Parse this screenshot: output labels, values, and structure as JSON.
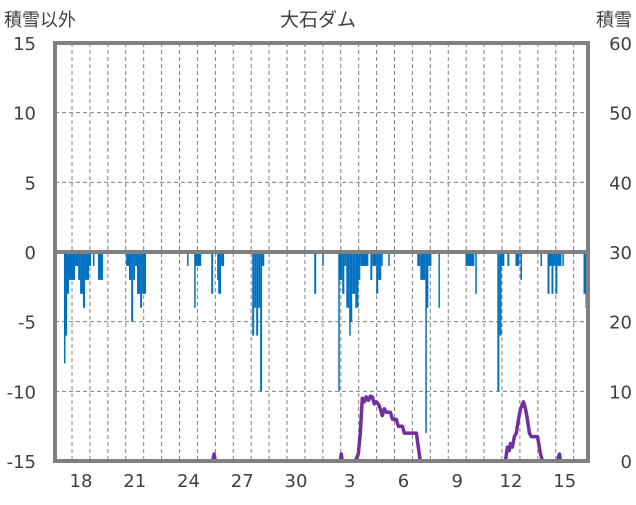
{
  "chart_data": {
    "type": "bar+line",
    "title": "大石ダム",
    "left_axis": {
      "label": "積雪以外",
      "range": [
        -15,
        15
      ],
      "ticks": [
        15,
        10,
        5,
        0,
        -5,
        -10,
        -15
      ]
    },
    "right_axis": {
      "label": "積雪",
      "range": [
        0,
        60
      ],
      "ticks": [
        60,
        50,
        40,
        30,
        20,
        10,
        0
      ]
    },
    "x_axis": {
      "unit": "days since Nov 18 00:00",
      "range": [
        -0.95,
        28.8
      ],
      "tick_labels": [
        {
          "day": 0.5,
          "label": "18"
        },
        {
          "day": 3.5,
          "label": "21"
        },
        {
          "day": 6.5,
          "label": "24"
        },
        {
          "day": 9.5,
          "label": "27"
        },
        {
          "day": 12.5,
          "label": "30"
        },
        {
          "day": 15.5,
          "label": "3"
        },
        {
          "day": 18.5,
          "label": "6"
        },
        {
          "day": 21.5,
          "label": "9"
        },
        {
          "day": 24.5,
          "label": "12"
        },
        {
          "day": 27.5,
          "label": "15"
        }
      ]
    },
    "grid": true,
    "colors": {
      "bars": "#0070C0",
      "line": "#7030A0",
      "frame": "#808080",
      "grid": "#808080"
    },
    "series": [
      {
        "name": "積雪以外",
        "axis": "left",
        "type": "bar",
        "segments": [
          [
            -0.45,
            -0.39,
            -8
          ],
          [
            -0.39,
            -0.28,
            -6
          ],
          [
            -0.28,
            -0.17,
            -3
          ],
          [
            -0.17,
            0.17,
            -2
          ],
          [
            0.17,
            0.34,
            -1
          ],
          [
            0.34,
            0.45,
            -2
          ],
          [
            0.45,
            0.61,
            -3
          ],
          [
            0.61,
            0.73,
            -4
          ],
          [
            0.73,
            0.95,
            -2
          ],
          [
            0.95,
            1.06,
            -1
          ],
          [
            1.17,
            1.23,
            -1
          ],
          [
            1.45,
            1.73,
            -2
          ],
          [
            3.02,
            3.18,
            -1
          ],
          [
            3.18,
            3.3,
            -2
          ],
          [
            3.3,
            3.41,
            -5
          ],
          [
            3.41,
            3.52,
            -2
          ],
          [
            3.52,
            3.63,
            -1
          ],
          [
            3.63,
            3.8,
            -3
          ],
          [
            3.8,
            3.91,
            -4
          ],
          [
            3.91,
            4.13,
            -3
          ],
          [
            6.42,
            6.48,
            -1
          ],
          [
            6.82,
            6.87,
            -4
          ],
          [
            6.87,
            7.21,
            -1
          ],
          [
            7.77,
            7.88,
            -3
          ],
          [
            8.1,
            8.16,
            -2
          ],
          [
            8.16,
            8.32,
            -3
          ],
          [
            8.32,
            8.49,
            -1
          ],
          [
            10.06,
            10.17,
            -6
          ],
          [
            10.17,
            10.28,
            -4
          ],
          [
            10.28,
            10.39,
            -6
          ],
          [
            10.39,
            10.5,
            -4
          ],
          [
            10.5,
            10.61,
            -10
          ],
          [
            10.61,
            10.73,
            -1
          ],
          [
            13.52,
            13.63,
            -3
          ],
          [
            13.97,
            14.02,
            -1
          ],
          [
            14.86,
            14.92,
            -10
          ],
          [
            14.92,
            15.08,
            -2
          ],
          [
            15.08,
            15.2,
            -3
          ],
          [
            15.2,
            15.31,
            -1
          ],
          [
            15.31,
            15.47,
            -4
          ],
          [
            15.47,
            15.53,
            -6
          ],
          [
            15.53,
            15.64,
            -5
          ],
          [
            15.64,
            15.81,
            -3
          ],
          [
            15.81,
            15.98,
            -4
          ],
          [
            15.98,
            16.09,
            -2
          ],
          [
            16.09,
            16.54,
            -1
          ],
          [
            16.65,
            16.76,
            -2
          ],
          [
            16.76,
            16.98,
            -1
          ],
          [
            16.98,
            17.09,
            -3
          ],
          [
            17.09,
            17.26,
            -2
          ],
          [
            17.26,
            17.32,
            -1
          ],
          [
            17.65,
            17.71,
            -1
          ],
          [
            19.27,
            19.44,
            -1
          ],
          [
            19.44,
            19.72,
            -2
          ],
          [
            19.72,
            19.78,
            -13
          ],
          [
            19.78,
            19.89,
            -4
          ],
          [
            19.89,
            20.06,
            -1
          ],
          [
            20.45,
            20.5,
            -4
          ],
          [
            21.96,
            22.46,
            -1
          ],
          [
            22.51,
            22.57,
            -3
          ],
          [
            23.74,
            23.85,
            -10
          ],
          [
            23.85,
            23.97,
            -6
          ],
          [
            23.97,
            24.13,
            -1
          ],
          [
            24.3,
            24.41,
            -1
          ],
          [
            24.75,
            24.97,
            -1
          ],
          [
            25.03,
            25.08,
            -2
          ],
          [
            26.15,
            26.2,
            -1
          ],
          [
            26.54,
            26.65,
            -3
          ],
          [
            26.65,
            26.76,
            -1
          ],
          [
            26.76,
            26.87,
            -3
          ],
          [
            26.87,
            26.98,
            -1
          ],
          [
            26.98,
            27.09,
            -3
          ],
          [
            27.09,
            27.32,
            -1
          ],
          [
            27.37,
            27.43,
            -1
          ],
          [
            28.55,
            28.66,
            -3
          ],
          [
            28.66,
            28.77,
            -4
          ],
          [
            28.77,
            28.83,
            -2
          ]
        ]
      },
      {
        "name": "積雪",
        "axis": "right",
        "type": "line",
        "points": [
          [
            -0.95,
            0
          ],
          [
            7.85,
            0
          ],
          [
            7.93,
            1
          ],
          [
            8.0,
            0
          ],
          [
            14.98,
            0
          ],
          [
            15.03,
            1
          ],
          [
            15.08,
            0
          ],
          [
            15.81,
            0
          ],
          [
            15.98,
            1
          ],
          [
            16.09,
            4
          ],
          [
            16.2,
            9
          ],
          [
            16.31,
            8.5
          ],
          [
            16.42,
            9.2
          ],
          [
            16.54,
            8.7
          ],
          [
            16.65,
            9.3
          ],
          [
            16.76,
            9.2
          ],
          [
            16.87,
            8.2
          ],
          [
            16.98,
            8.5
          ],
          [
            17.09,
            8.2
          ],
          [
            17.21,
            7.5
          ],
          [
            17.32,
            6.5
          ],
          [
            17.43,
            7.5
          ],
          [
            17.54,
            7
          ],
          [
            17.77,
            7
          ],
          [
            17.88,
            6
          ],
          [
            18.1,
            6
          ],
          [
            18.21,
            5
          ],
          [
            18.44,
            5
          ],
          [
            18.55,
            4
          ],
          [
            18.88,
            4
          ],
          [
            19.22,
            4
          ],
          [
            19.33,
            2
          ],
          [
            19.44,
            0
          ],
          [
            24.19,
            0
          ],
          [
            24.3,
            2
          ],
          [
            24.41,
            1.5
          ],
          [
            24.47,
            2.5
          ],
          [
            24.58,
            2
          ],
          [
            24.69,
            3.5
          ],
          [
            24.8,
            4
          ],
          [
            24.92,
            6
          ],
          [
            25.03,
            7.5
          ],
          [
            25.2,
            8.5
          ],
          [
            25.31,
            7.5
          ],
          [
            25.42,
            6
          ],
          [
            25.53,
            4
          ],
          [
            25.64,
            3.5
          ],
          [
            25.98,
            3.5
          ],
          [
            26.15,
            1
          ],
          [
            26.26,
            0
          ],
          [
            27.09,
            0
          ],
          [
            27.21,
            1
          ],
          [
            27.26,
            0
          ],
          [
            28.8,
            0
          ]
        ]
      }
    ]
  }
}
